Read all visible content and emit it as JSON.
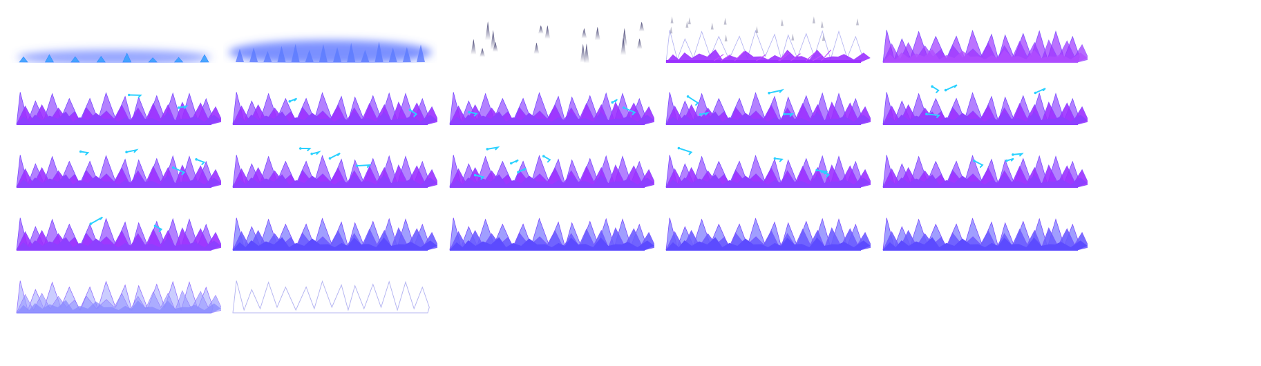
{
  "sprite_sheet": {
    "columns": 5,
    "frame_count": 22,
    "palette": {
      "violet": "#9b30ff",
      "lavender": "#a66bff",
      "blue_violet": "#6a5cff",
      "periwinkle": "#8f8dff",
      "glow_blue": "#4f6bff",
      "dark_slate": "#3e3c6e",
      "outline": "#7a4cff",
      "spark_cyan": "#2ad1ff",
      "faint_line": "#b6b6f2"
    },
    "frames": [
      {
        "name": "frame-01",
        "stage": "glow-small"
      },
      {
        "name": "frame-02",
        "stage": "glow-large"
      },
      {
        "name": "frame-03",
        "stage": "dark-spikes"
      },
      {
        "name": "frame-04",
        "stage": "forming"
      },
      {
        "name": "frame-05",
        "stage": "filling"
      },
      {
        "name": "frame-06",
        "stage": "sparks",
        "sparks": 2
      },
      {
        "name": "frame-07",
        "stage": "sparks",
        "sparks": 2
      },
      {
        "name": "frame-08",
        "stage": "sparks",
        "sparks": 3
      },
      {
        "name": "frame-09",
        "stage": "sparks",
        "sparks": 4
      },
      {
        "name": "frame-10",
        "stage": "sparks",
        "sparks": 4
      },
      {
        "name": "frame-11",
        "stage": "sparks",
        "sparks": 4
      },
      {
        "name": "frame-12",
        "stage": "sparks",
        "sparks": 4
      },
      {
        "name": "frame-13",
        "stage": "sparks",
        "sparks": 5
      },
      {
        "name": "frame-14",
        "stage": "sparks",
        "sparks": 4
      },
      {
        "name": "frame-15",
        "stage": "sparks",
        "sparks": 3
      },
      {
        "name": "frame-16",
        "stage": "sparks",
        "sparks": 2
      },
      {
        "name": "frame-17",
        "stage": "solid",
        "sparks": 0
      },
      {
        "name": "frame-18",
        "stage": "solid",
        "sparks": 0
      },
      {
        "name": "frame-19",
        "stage": "solid",
        "sparks": 0
      },
      {
        "name": "frame-20",
        "stage": "solid",
        "sparks": 0
      },
      {
        "name": "frame-21",
        "stage": "fading",
        "sparks": 0
      },
      {
        "name": "frame-22",
        "stage": "outline-only",
        "sparks": 0
      }
    ]
  }
}
